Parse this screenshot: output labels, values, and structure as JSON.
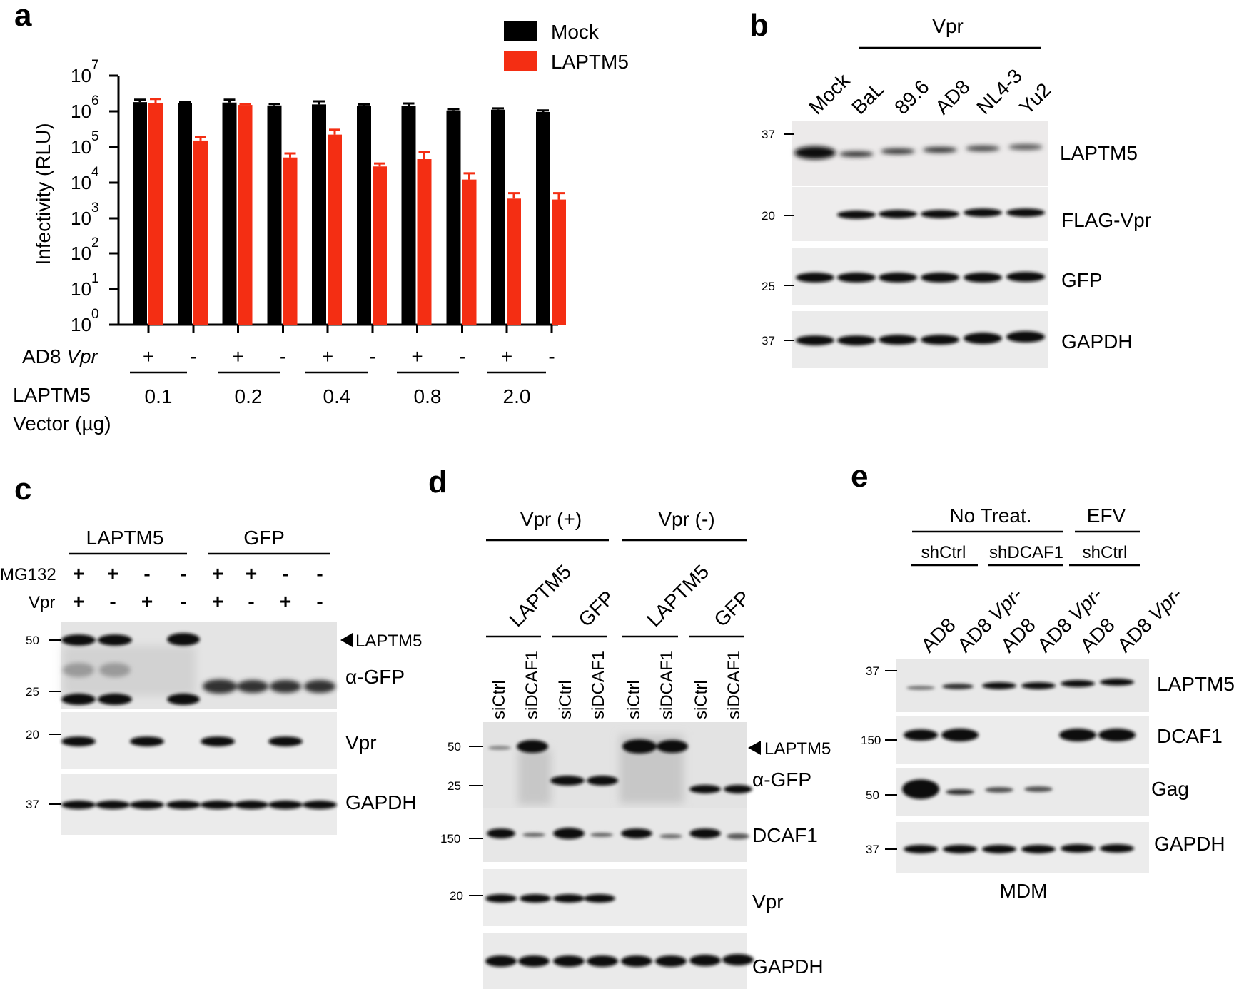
{
  "panel_labels": {
    "a": "a",
    "b": "b",
    "c": "c",
    "d": "d",
    "e": "e"
  },
  "chart_data": {
    "type": "bar",
    "ylabel": "Infectivity (RLU)",
    "yscale": "log",
    "ylim": [
      1,
      10000000
    ],
    "yticks": [
      "10^0",
      "10^1",
      "10^2",
      "10^3",
      "10^4",
      "10^5",
      "10^6",
      "10^7"
    ],
    "row_labels": {
      "vpr_prefix": "AD8 ",
      "vpr_italic": "Vpr",
      "vector_line1": "LAPTM5",
      "vector_line2": "Vector (µg)"
    },
    "vpr_signs": [
      "+",
      "-",
      "+",
      "-",
      "+",
      "-",
      "+",
      "-",
      "+",
      "-"
    ],
    "doses": [
      "0.1",
      "0.2",
      "0.4",
      "0.8",
      "2.0"
    ],
    "categories": [
      "0.1 +",
      "0.1 -",
      "0.2 +",
      "0.2 -",
      "0.4 +",
      "0.4 -",
      "0.8 +",
      "0.8 -",
      "2.0 +",
      "2.0 -"
    ],
    "series": [
      {
        "name": "Mock",
        "color": "#000000",
        "values": [
          1800000,
          1700000,
          1750000,
          1450000,
          1550000,
          1400000,
          1400000,
          1050000,
          1100000,
          950000
        ],
        "errors": [
          2100000,
          1800000,
          2100000,
          1600000,
          1900000,
          1550000,
          1650000,
          1150000,
          1200000,
          1050000
        ]
      },
      {
        "name": "LAPTM5",
        "color": "#f42e13",
        "values": [
          1700000,
          150000,
          1500000,
          50000,
          220000,
          28000,
          45000,
          12000,
          3500,
          3300
        ],
        "errors": [
          2200000,
          190000,
          1600000,
          65000,
          300000,
          34000,
          72000,
          18000,
          5000,
          5000
        ]
      }
    ]
  },
  "panel_b": {
    "group_label": "Vpr",
    "lanes": [
      "Mock",
      "BaL",
      "89.6",
      "AD8",
      "NL4-3",
      "Yu2"
    ],
    "blots": [
      {
        "name": "LAPTM5",
        "marker": "37"
      },
      {
        "name": "FLAG-Vpr",
        "marker": "20"
      },
      {
        "name": "GFP",
        "marker": "25"
      },
      {
        "name": "GAPDH",
        "marker": "37"
      }
    ]
  },
  "panel_c": {
    "groups": [
      "LAPTM5",
      "GFP"
    ],
    "row_labels": [
      "MG132",
      "Vpr"
    ],
    "mg132_signs": [
      "+",
      "+",
      "-",
      "-",
      "+",
      "+",
      "-",
      "-"
    ],
    "vpr_signs": [
      "+",
      "-",
      "+",
      "-",
      "+",
      "-",
      "+",
      "-"
    ],
    "arrow_label": "LAPTM5",
    "markers": [
      "50",
      "25",
      "20",
      "37"
    ],
    "blots": [
      "α-GFP",
      "Vpr",
      "GAPDH"
    ]
  },
  "panel_d": {
    "groups": [
      "Vpr (+)",
      "Vpr (-)"
    ],
    "subgroups": [
      "LAPTM5",
      "GFP",
      "LAPTM5",
      "GFP"
    ],
    "lanes": [
      "siCtrl",
      "siDCAF1",
      "siCtrl",
      "siDCAF1",
      "siCtrl",
      "siDCAF1",
      "siCtrl",
      "siDCAF1"
    ],
    "arrow_label": "LAPTM5",
    "markers": [
      "50",
      "25",
      "150",
      "20"
    ],
    "blots": [
      "α-GFP",
      "DCAF1",
      "Vpr",
      "GAPDH"
    ]
  },
  "panel_e": {
    "groups": [
      "No Treat.",
      "EFV"
    ],
    "subgroups": [
      "shCtrl",
      "shDCAF1",
      "shCtrl"
    ],
    "lane_prefix": [
      "AD8",
      "AD8 ",
      "AD8",
      "AD8 ",
      "AD8",
      "AD8 "
    ],
    "lane_italic": [
      "",
      "Vpr-",
      "",
      "Vpr-",
      "",
      "Vpr-"
    ],
    "markers": [
      "37",
      "150",
      "50",
      "37"
    ],
    "blots": [
      "LAPTM5",
      "DCAF1",
      "Gag",
      "GAPDH"
    ],
    "caption": "MDM"
  }
}
